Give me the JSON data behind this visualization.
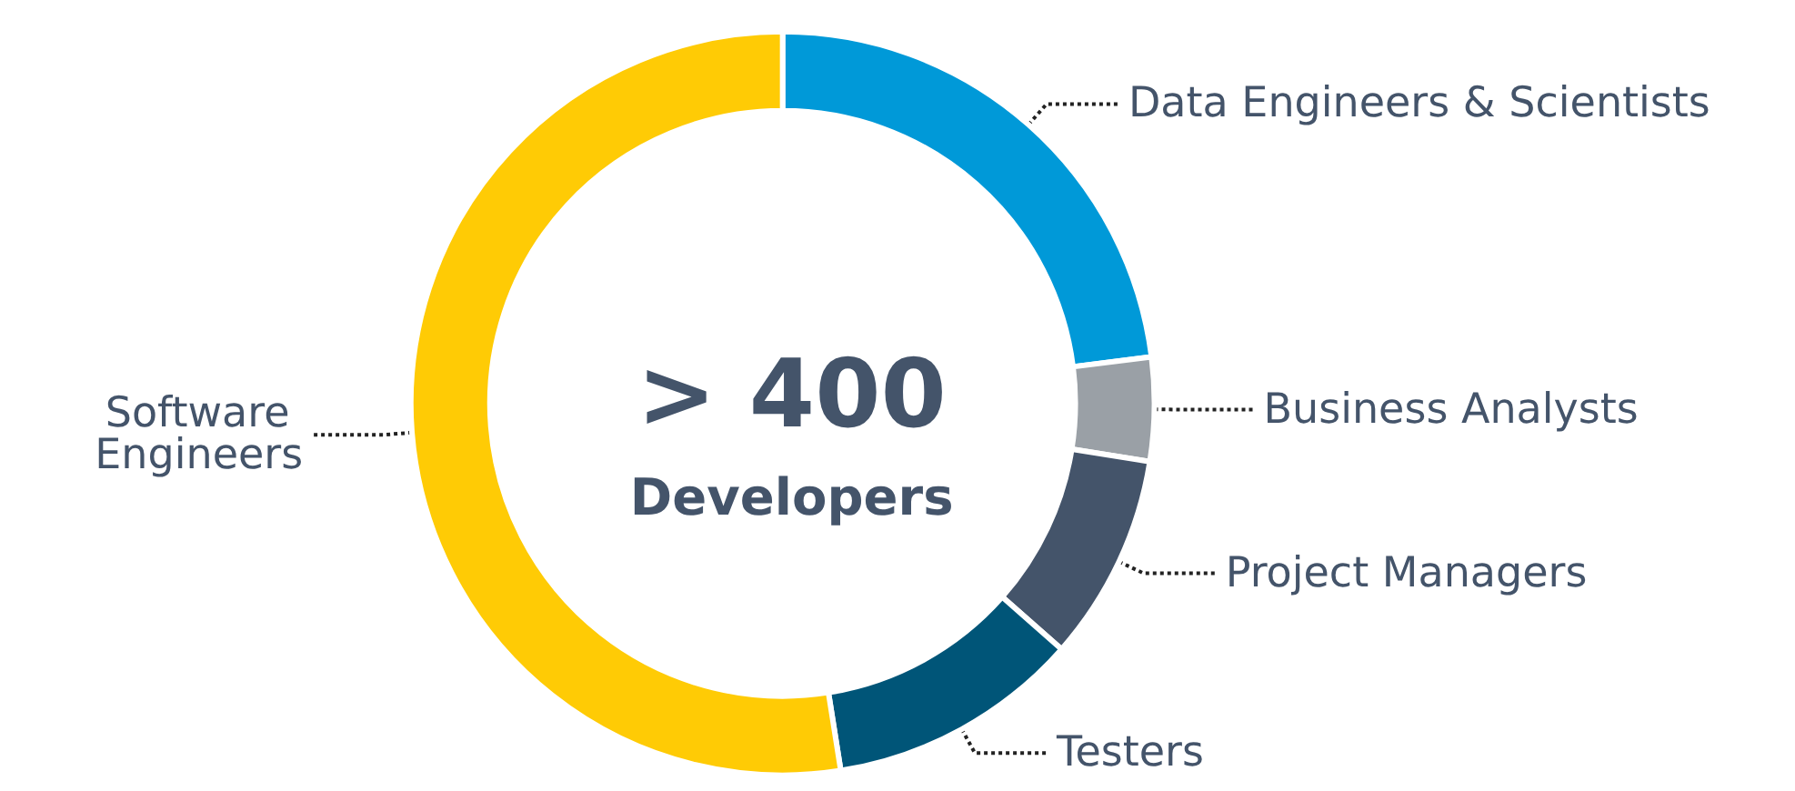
{
  "chart_data": {
    "type": "donut",
    "title": "> 400",
    "subtitle": "Developers",
    "categories": [
      "Data Engineers & Scientists",
      "Business Analysts",
      "Project Managers",
      "Testers",
      "Software Engineers"
    ],
    "values": [
      23,
      4.5,
      9,
      11,
      52.5
    ],
    "colors": [
      "#0099d8",
      "#9aa0a6",
      "#44546a",
      "#005578",
      "#ffcb05"
    ],
    "legend": false
  }
}
